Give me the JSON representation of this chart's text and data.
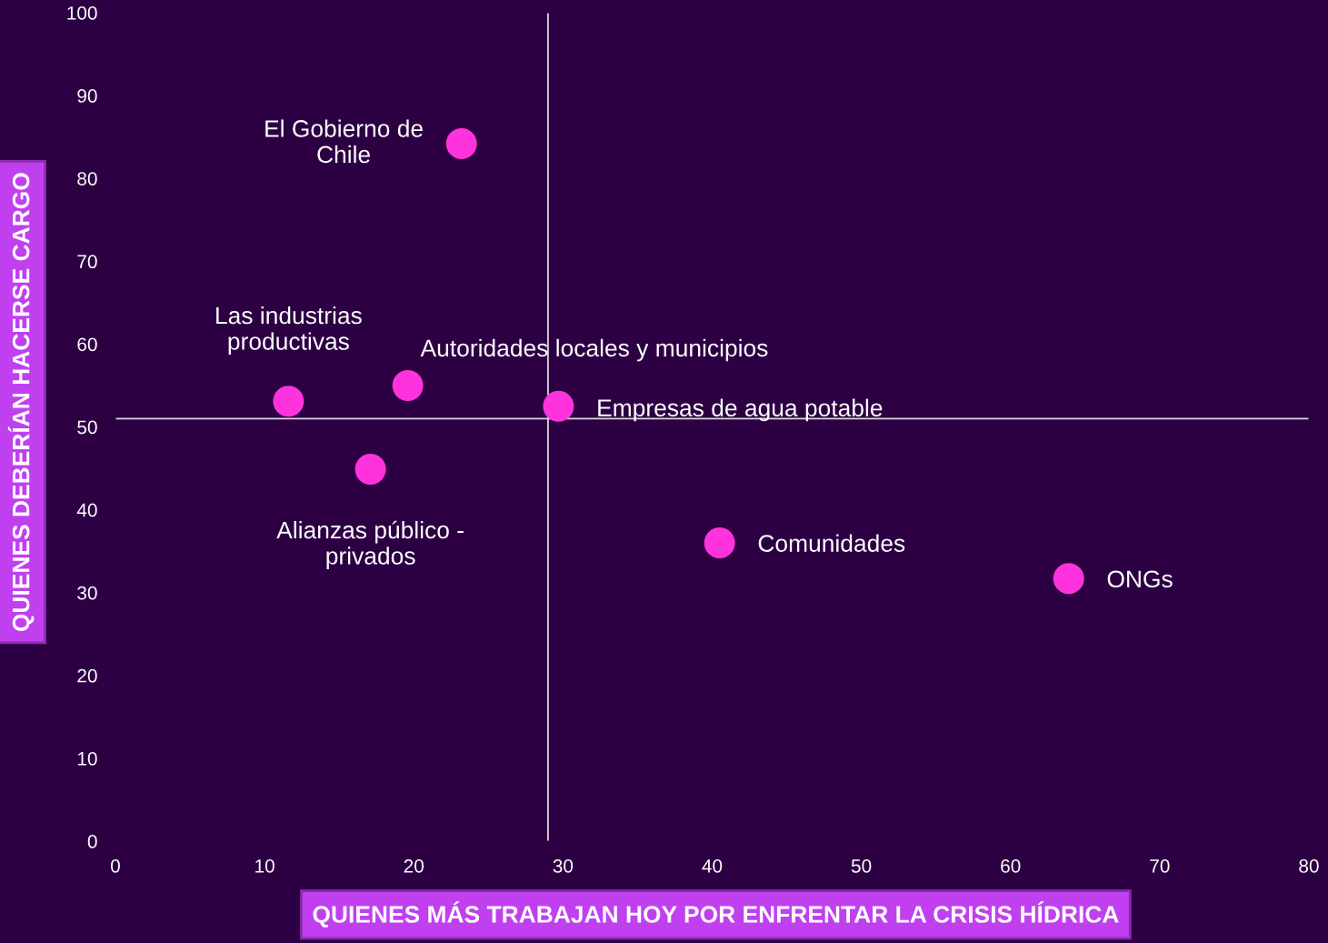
{
  "chart_data": {
    "type": "scatter",
    "xlabel": "QUIENES MÁS TRABAJAN HOY POR ENFRENTAR LA CRISIS HÍDRICA",
    "ylabel": "QUIENES DEBERÍAN HACERSE CARGO",
    "series": [
      {
        "color": "#ff33dd",
        "x": [
          23.2,
          11.6,
          19.6,
          29.7,
          17.1,
          40.5,
          63.9
        ],
        "values": [
          84.2,
          53.1,
          55.0,
          52.5,
          44.9,
          36.0,
          31.7
        ]
      }
    ],
    "annotations": [
      {
        "text": "El Gobierno de\nChile",
        "x": 23.2,
        "y": 84.2
      },
      {
        "text": "Las industrias\nproductivas",
        "x": 11.6,
        "y": 53.1
      },
      {
        "text": "Autoridades locales y municipios",
        "x": 19.6,
        "y": 55.0
      },
      {
        "text": "Empresas de agua potable",
        "x": 29.7,
        "y": 52.5
      },
      {
        "text": "Alianzas público -\nprivados",
        "x": 17.1,
        "y": 44.9
      },
      {
        "text": "Comunidades",
        "x": 40.5,
        "y": 36.0
      },
      {
        "text": "ONGs",
        "x": 63.9,
        "y": 31.7
      }
    ],
    "ref_lines": [
      {
        "axis": "x",
        "value": 29.0,
        "color": "#d9d9d9"
      },
      {
        "axis": "y",
        "value": 51.0,
        "color": "#d9d9d9"
      }
    ],
    "xlim": [
      0,
      80
    ],
    "xticks": [
      0,
      10,
      20,
      30,
      40,
      50,
      60,
      70,
      80
    ],
    "ylim": [
      0,
      100
    ],
    "yticks": [
      0,
      10,
      20,
      30,
      40,
      50,
      60,
      70,
      80,
      90,
      100
    ],
    "grid": false,
    "legend": false,
    "marker": "circle"
  }
}
